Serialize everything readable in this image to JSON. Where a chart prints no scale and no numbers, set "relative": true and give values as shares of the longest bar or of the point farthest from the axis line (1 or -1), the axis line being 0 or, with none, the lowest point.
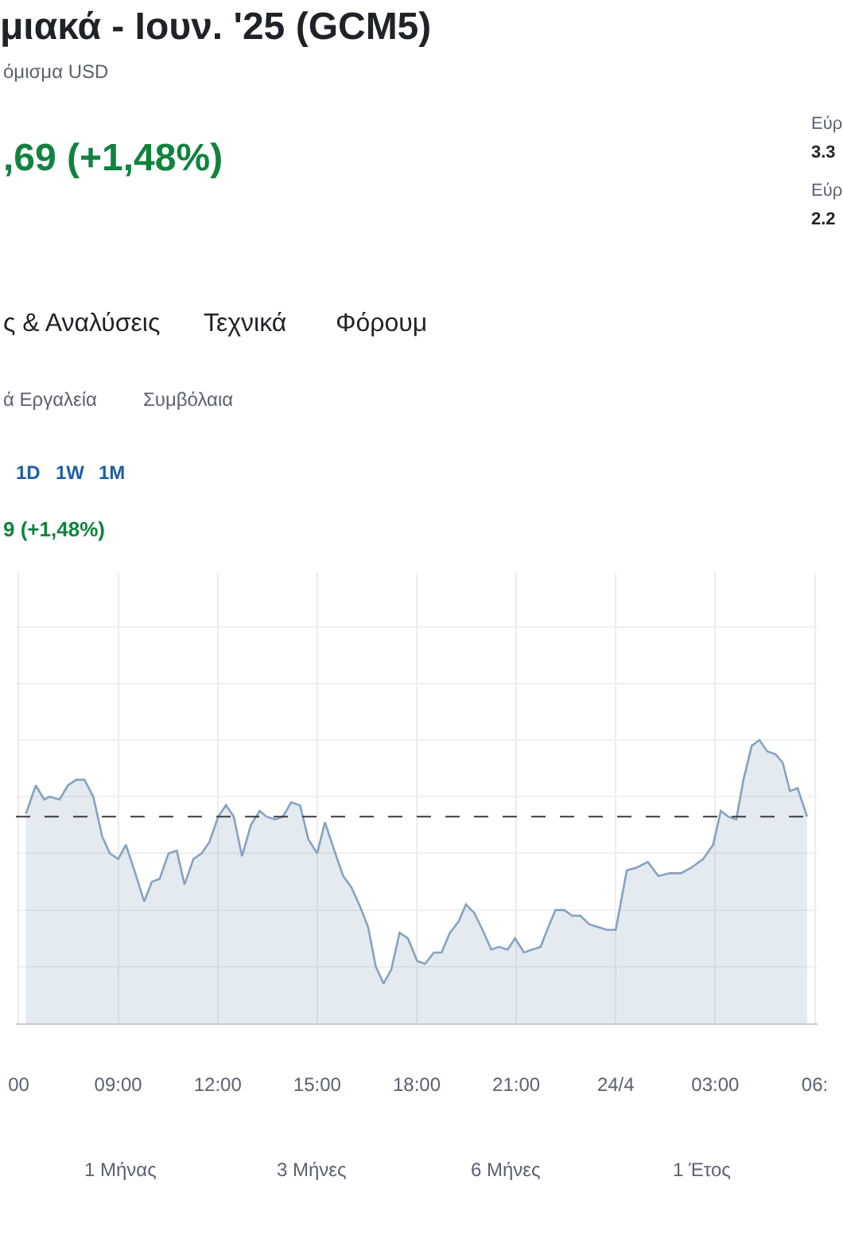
{
  "chart_data": {
    "type": "area",
    "title": "μιακά - Ιουν. '25 (GCM5)",
    "subtitle": "όμισμα USD",
    "annotations": [
      ",69 (+1,48%)",
      "Εύρ",
      "3.3",
      "Εύρ",
      "2.2",
      "ς & Αναλύσεις",
      "Τεχνικά",
      "Φόρουμ",
      "ά Εργαλεία",
      "Συμβόλαια",
      "1D",
      "1W",
      "1M",
      "9 (+1,48%)",
      "1 Μήνας",
      "3 Μήνες",
      "6 Μήνες",
      "1 Έτος"
    ],
    "relative": true,
    "x": [
      "--04-23T06:13",
      "--04-23T06:31",
      "--04-23T06:46",
      "--04-23T06:56",
      "--04-23T07:14",
      "--04-23T07:29",
      "--04-23T07:44",
      "--04-23T07:59",
      "--04-23T08:15",
      "--04-23T08:31",
      "--04-23T08:45",
      "--04-23T09:00",
      "--04-23T09:14",
      "--04-23T09:31",
      "--04-23T09:47",
      "--04-23T10:01",
      "--04-23T10:15",
      "--04-23T10:31",
      "--04-23T10:46",
      "--04-23T11:00",
      "--04-23T11:16",
      "--04-23T11:31",
      "--04-23T11:45",
      "--04-23T12:01",
      "--04-23T12:15",
      "--04-23T12:29",
      "--04-23T12:44",
      "--04-23T13:00",
      "--04-23T13:16",
      "--04-23T13:28",
      "--04-23T13:44",
      "--04-23T13:58",
      "--04-23T14:13",
      "--04-23T14:29",
      "--04-23T14:44",
      "--04-23T15:00",
      "--04-23T15:14",
      "--04-23T15:31",
      "--04-23T15:47",
      "--04-23T16:02",
      "--04-23T16:18",
      "--04-23T16:32",
      "--04-23T16:46",
      "--04-23T17:00",
      "--04-23T17:14",
      "--04-23T17:29",
      "--04-23T17:44",
      "--04-23T18:01",
      "--04-23T18:15",
      "--04-23T18:31",
      "--04-23T18:45",
      "--04-23T19:00",
      "--04-23T19:16",
      "--04-23T19:29",
      "--04-23T19:44",
      "--04-23T19:59",
      "--04-23T20:15",
      "--04-23T20:29",
      "--04-23T20:44",
      "--04-23T20:58",
      "--04-23T21:14",
      "--04-23T21:28",
      "--04-23T21:44",
      "--04-23T21:58",
      "--04-23T22:11",
      "--04-23T22:27",
      "--04-23T22:41",
      "--04-23T22:56",
      "--04-23T23:12",
      "--04-23T23:28",
      "--04-23T23:44",
      "--04-24T00:00",
      "--04-24T00:20",
      "--04-24T00:38",
      "--04-24T00:58",
      "--04-24T01:17",
      "--04-24T01:38",
      "--04-24T01:58",
      "--04-24T02:17",
      "--04-24T02:38",
      "--04-24T02:56",
      "--04-24T03:10",
      "--04-24T03:23",
      "--04-24T03:38",
      "--04-24T03:51",
      "--04-24T04:06",
      "--04-24T04:20",
      "--04-24T04:34",
      "--04-24T04:49",
      "--04-24T05:02",
      "--04-24T05:15",
      "--04-24T05:29",
      "--04-24T05:46"
    ],
    "values": [
      0.74,
      0.84,
      0.79,
      0.8,
      0.79,
      0.84,
      0.86,
      0.86,
      0.8,
      0.66,
      0.6,
      0.58,
      0.63,
      0.53,
      0.43,
      0.5,
      0.51,
      0.6,
      0.61,
      0.49,
      0.58,
      0.6,
      0.64,
      0.73,
      0.77,
      0.73,
      0.59,
      0.7,
      0.75,
      0.73,
      0.72,
      0.73,
      0.78,
      0.77,
      0.65,
      0.6,
      0.71,
      0.61,
      0.52,
      0.48,
      0.41,
      0.34,
      0.2,
      0.14,
      0.19,
      0.32,
      0.3,
      0.22,
      0.21,
      0.25,
      0.25,
      0.32,
      0.36,
      0.42,
      0.39,
      0.33,
      0.26,
      0.27,
      0.26,
      0.3,
      0.25,
      0.26,
      0.27,
      0.34,
      0.4,
      0.4,
      0.38,
      0.38,
      0.35,
      0.34,
      0.33,
      0.33,
      0.54,
      0.55,
      0.57,
      0.52,
      0.53,
      0.53,
      0.55,
      0.58,
      0.63,
      0.75,
      0.73,
      0.72,
      0.86,
      0.98,
      1.0,
      0.96,
      0.95,
      0.92,
      0.82,
      0.83,
      0.73
    ],
    "color": "#86a3c0",
    "xlim": [
      "--04-23T05:55",
      "--04-24T06:05"
    ],
    "xticks": [
      {
        "value": "--04-23T06:00",
        "label": "00"
      },
      {
        "value": "--04-23T09:00",
        "label": "09:00"
      },
      {
        "value": "--04-23T12:00",
        "label": "12:00"
      },
      {
        "value": "--04-23T15:00",
        "label": "15:00"
      },
      {
        "value": "--04-23T18:00",
        "label": "18:00"
      },
      {
        "value": "--04-23T21:00",
        "label": "21:00"
      },
      {
        "value": "--04-24",
        "label": "24/4"
      },
      {
        "value": "--04-24T03:00",
        "label": "03:00"
      },
      {
        "value": "--04-24T06:00",
        "label": "06:"
      }
    ],
    "ref_lines": [
      {
        "axis": "y",
        "value": 0.73,
        "line_style": "dashed",
        "color": "#3a3a3a"
      }
    ],
    "grid": true
  }
}
